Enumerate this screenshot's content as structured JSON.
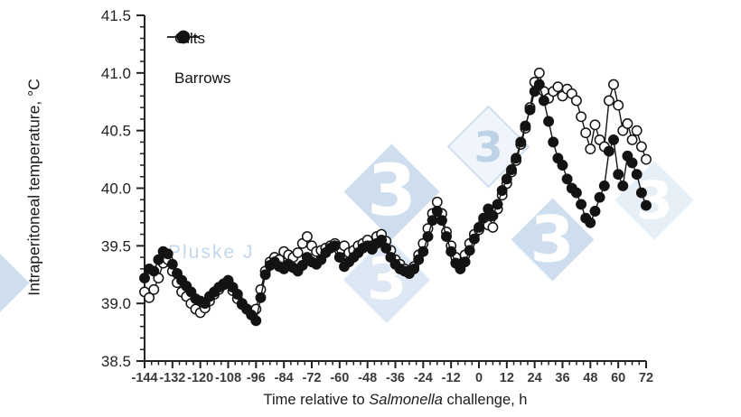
{
  "figure": {
    "y_axis_title": "Intraperitoneal temperature, °C",
    "x_axis_title_pre": "Time relative to ",
    "x_axis_title_italic": "Salmonella",
    "x_axis_title_post": " challenge, h"
  },
  "legend": {
    "items": [
      {
        "label": "Gilts",
        "marker": "open-circle"
      },
      {
        "label": "Barrows",
        "marker": "filled-circle"
      }
    ]
  },
  "watermark": {
    "brand_glyph": "3",
    "text": "Pluske J",
    "diamond_color": "#cfdeee",
    "diamond_color_faint": "#dde8f4",
    "light_diamond_color": "#f0f5fb",
    "glyph_color": "#ffffff",
    "light_glyph_color": "#bed2e6",
    "text_color": "#c3d7ea"
  },
  "chart_data": {
    "type": "scatter",
    "title": "",
    "xlabel": "Time relative to Salmonella challenge, h",
    "ylabel": "Intraperitoneal temperature, °C",
    "xlim": [
      -144,
      72
    ],
    "ylim": [
      38.5,
      41.5
    ],
    "x_major_step": 12,
    "x_minor_step": 3,
    "y_major_step": 0.5,
    "y_minor_step": 0.1,
    "grid": false,
    "legend_position": "upper-left-inside",
    "x_tick_labels": [
      "-144",
      "-132",
      "-120",
      "-108",
      "-96",
      "-84",
      "-72",
      "-60",
      "-48",
      "-36",
      "-24",
      "-12",
      "0",
      "12",
      "24",
      "36",
      "48",
      "60",
      "72"
    ],
    "y_tick_labels": [
      "38.5",
      "39.0",
      "39.5",
      "40.0",
      "40.5",
      "41.0",
      "41.5"
    ],
    "x": [
      -144,
      -142,
      -140,
      -138,
      -136,
      -134,
      -132,
      -130,
      -128,
      -126,
      -124,
      -122,
      -120,
      -118,
      -116,
      -114,
      -112,
      -110,
      -108,
      -106,
      -104,
      -102,
      -100,
      -98,
      -96,
      -94,
      -92,
      -90,
      -88,
      -86,
      -84,
      -82,
      -80,
      -78,
      -76,
      -74,
      -72,
      -70,
      -68,
      -66,
      -64,
      -62,
      -60,
      -58,
      -56,
      -54,
      -52,
      -50,
      -48,
      -46,
      -44,
      -42,
      -40,
      -38,
      -36,
      -34,
      -32,
      -30,
      -28,
      -26,
      -24,
      -22,
      -20,
      -18,
      -16,
      -14,
      -12,
      -10,
      -8,
      -6,
      -4,
      -2,
      0,
      2,
      4,
      6,
      8,
      10,
      12,
      14,
      16,
      18,
      20,
      22,
      24,
      26,
      28,
      30,
      32,
      34,
      36,
      38,
      40,
      42,
      44,
      46,
      48,
      50,
      52,
      54,
      56,
      58,
      60,
      62,
      64,
      66,
      68,
      70,
      72
    ],
    "series": [
      {
        "name": "Gilts",
        "marker": "open-circle",
        "line_color": "#131313",
        "marker_fill": "#ffffff",
        "values": [
          39.1,
          39.05,
          39.12,
          39.22,
          39.35,
          39.38,
          39.28,
          39.18,
          39.1,
          39.06,
          39.0,
          38.95,
          38.92,
          38.96,
          39.02,
          39.08,
          39.12,
          39.16,
          39.19,
          39.11,
          39.04,
          38.99,
          38.95,
          38.92,
          38.95,
          39.12,
          39.28,
          39.36,
          39.4,
          39.38,
          39.45,
          39.42,
          39.4,
          39.44,
          39.52,
          39.58,
          39.5,
          39.45,
          39.46,
          39.48,
          39.5,
          39.52,
          39.46,
          39.5,
          39.44,
          39.46,
          39.5,
          39.52,
          39.55,
          39.5,
          39.58,
          39.6,
          39.54,
          39.46,
          39.38,
          39.34,
          39.3,
          39.28,
          39.32,
          39.42,
          39.52,
          39.65,
          39.78,
          39.88,
          39.78,
          39.62,
          39.5,
          39.4,
          39.34,
          39.42,
          39.52,
          39.6,
          39.64,
          39.7,
          39.68,
          39.66,
          39.82,
          39.94,
          40.04,
          40.14,
          40.24,
          40.38,
          40.52,
          40.7,
          40.92,
          41.0,
          40.84,
          40.78,
          40.84,
          40.88,
          40.8,
          40.86,
          40.82,
          40.76,
          40.62,
          40.48,
          40.34,
          40.55,
          40.42,
          40.36,
          40.76,
          40.9,
          40.72,
          40.5,
          40.56,
          40.42,
          40.5,
          40.36,
          40.25
        ]
      },
      {
        "name": "Barrows",
        "marker": "filled-circle",
        "line_color": "#131313",
        "marker_fill": "#131313",
        "values": [
          39.22,
          39.3,
          39.28,
          39.38,
          39.45,
          39.43,
          39.34,
          39.26,
          39.2,
          39.15,
          39.1,
          39.04,
          39.02,
          39.0,
          39.06,
          39.1,
          39.14,
          39.17,
          39.2,
          39.14,
          39.08,
          39.0,
          38.95,
          38.9,
          38.85,
          39.05,
          39.25,
          39.33,
          39.36,
          39.32,
          39.3,
          39.34,
          39.31,
          39.28,
          39.33,
          39.4,
          39.36,
          39.34,
          39.38,
          39.44,
          39.48,
          39.5,
          39.4,
          39.32,
          39.36,
          39.4,
          39.44,
          39.48,
          39.5,
          39.47,
          39.52,
          39.55,
          39.48,
          39.4,
          39.34,
          39.3,
          39.28,
          39.26,
          39.3,
          39.38,
          39.45,
          39.58,
          39.72,
          39.8,
          39.72,
          39.58,
          39.45,
          39.35,
          39.3,
          39.36,
          39.46,
          39.56,
          39.66,
          39.74,
          39.82,
          39.76,
          39.86,
          39.98,
          40.08,
          40.16,
          40.26,
          40.4,
          40.54,
          40.68,
          40.84,
          40.9,
          40.76,
          40.58,
          40.4,
          40.26,
          40.2,
          40.08,
          40.0,
          39.96,
          39.86,
          39.74,
          39.7,
          39.8,
          39.92,
          40.02,
          40.32,
          40.42,
          40.12,
          40.02,
          40.28,
          40.22,
          40.12,
          39.96,
          39.85
        ]
      }
    ]
  }
}
